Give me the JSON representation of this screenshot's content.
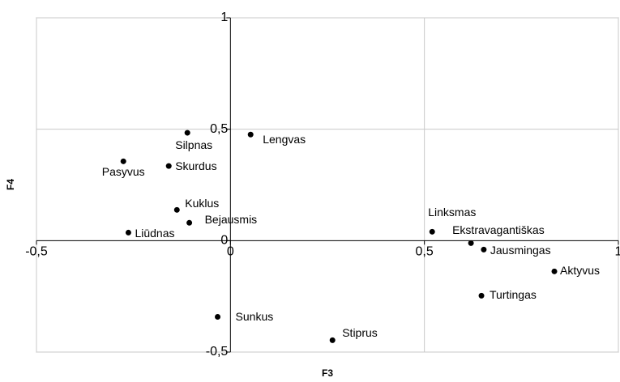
{
  "chart_data": {
    "type": "scatter",
    "x_label": "F3",
    "y_label": "F4",
    "point_labels": [
      "Pasyvus",
      "Silpnas",
      "Skurdus",
      "Lengvas",
      "Kuklus",
      "Bejausmis",
      "Liūdnas",
      "Sunkus",
      "Stiprus",
      "Linksmas",
      "Ekstravagantiškas",
      "Jausmingas",
      "Aktyvus",
      "Turtingas"
    ],
    "x": [
      -0.276,
      -0.111,
      -0.159,
      0.052,
      -0.138,
      -0.106,
      -0.263,
      -0.033,
      0.263,
      0.52,
      0.62,
      0.653,
      0.835,
      0.647
    ],
    "values": [
      0.356,
      0.484,
      0.335,
      0.476,
      0.138,
      0.08,
      0.036,
      -0.342,
      -0.447,
      0.04,
      -0.011,
      -0.04,
      -0.138,
      -0.247
    ],
    "color": "#000000",
    "xlim": [
      -0.5,
      1
    ],
    "ylim": [
      -0.5,
      1
    ],
    "xticks": [
      {
        "value": -0.5,
        "label": "-0,5"
      },
      0,
      {
        "value": 0.5,
        "label": "0,5"
      },
      1
    ],
    "yticks": [
      {
        "value": -0.5,
        "label": "-0,5"
      },
      0,
      {
        "value": 0.5,
        "label": "0,5"
      },
      1
    ],
    "grid": true
  }
}
